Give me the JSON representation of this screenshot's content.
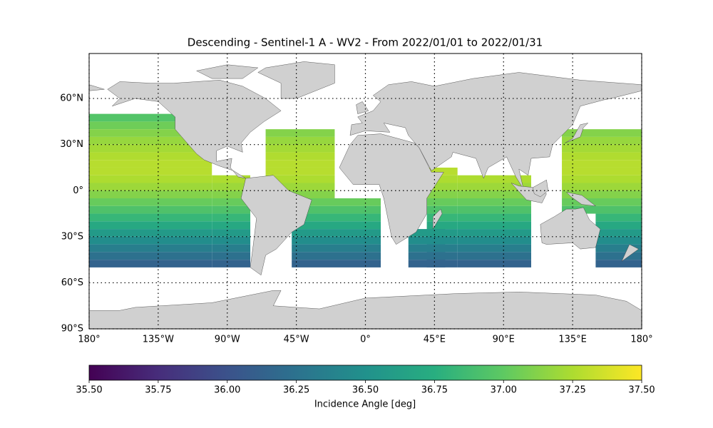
{
  "chart_data": {
    "type": "map",
    "title": "Descending - Sentinel-1 A - WV2 - From 2022/01/01 to 2022/01/31",
    "xlim": [
      -180,
      180
    ],
    "ylim": [
      -90,
      90
    ],
    "xticks": [
      {
        "value": -180,
        "label": "180°"
      },
      {
        "value": -135,
        "label": "135°W"
      },
      {
        "value": -90,
        "label": "90°W"
      },
      {
        "value": -45,
        "label": "45°W"
      },
      {
        "value": 0,
        "label": "0°"
      },
      {
        "value": 45,
        "label": "45°E"
      },
      {
        "value": 90,
        "label": "90°E"
      },
      {
        "value": 135,
        "label": "135°E"
      },
      {
        "value": 180,
        "label": "180°"
      }
    ],
    "yticks": [
      {
        "value": -90,
        "label": "90°S"
      },
      {
        "value": -60,
        "label": "60°S"
      },
      {
        "value": -30,
        "label": "30°S"
      },
      {
        "value": 0,
        "label": "0°"
      },
      {
        "value": 30,
        "label": "30°N"
      },
      {
        "value": 60,
        "label": "60°N"
      }
    ],
    "grid": true,
    "swaths": [
      {
        "lon": [
          -180,
          -100
        ],
        "lat": [
          -50,
          50
        ]
      },
      {
        "lon": [
          -100,
          -75
        ],
        "lat": [
          -50,
          10
        ]
      },
      {
        "lon": [
          -65,
          -20
        ],
        "lat": [
          -5,
          40
        ]
      },
      {
        "lon": [
          -48,
          10
        ],
        "lat": [
          -50,
          -5
        ]
      },
      {
        "lon": [
          28,
          52
        ],
        "lat": [
          -50,
          -25
        ]
      },
      {
        "lon": [
          40,
          60
        ],
        "lat": [
          -50,
          15
        ]
      },
      {
        "lon": [
          60,
          108
        ],
        "lat": [
          -50,
          10
        ]
      },
      {
        "lon": [
          128,
          180
        ],
        "lat": [
          -15,
          40
        ]
      },
      {
        "lon": [
          150,
          180
        ],
        "lat": [
          -50,
          -15
        ]
      }
    ],
    "bands": {
      "lat": [
        47.5,
        42.5,
        37.5,
        32.5,
        27.5,
        22.5,
        17.5,
        12.5,
        7.5,
        2.5,
        -2.5,
        -7.5,
        -12.5,
        -17.5,
        -22.5,
        -27.5,
        -32.5,
        -37.5,
        -42.5,
        -47.5
      ],
      "values": [
        36.95,
        37.05,
        37.12,
        37.18,
        37.22,
        37.26,
        37.28,
        37.28,
        37.25,
        37.2,
        37.12,
        37.03,
        36.93,
        36.82,
        36.7,
        36.58,
        36.47,
        36.35,
        36.24,
        36.13
      ]
    },
    "colorbar": {
      "label": "Incidence Angle [deg]",
      "lim": [
        35.5,
        37.5
      ],
      "ticks": [
        {
          "value": 35.5,
          "label": "35.50"
        },
        {
          "value": 35.75,
          "label": "35.75"
        },
        {
          "value": 36.0,
          "label": "36.00"
        },
        {
          "value": 36.25,
          "label": "36.25"
        },
        {
          "value": 36.5,
          "label": "36.50"
        },
        {
          "value": 36.75,
          "label": "36.75"
        },
        {
          "value": 37.0,
          "label": "37.00"
        },
        {
          "value": 37.25,
          "label": "37.25"
        },
        {
          "value": 37.5,
          "label": "37.50"
        }
      ]
    }
  }
}
